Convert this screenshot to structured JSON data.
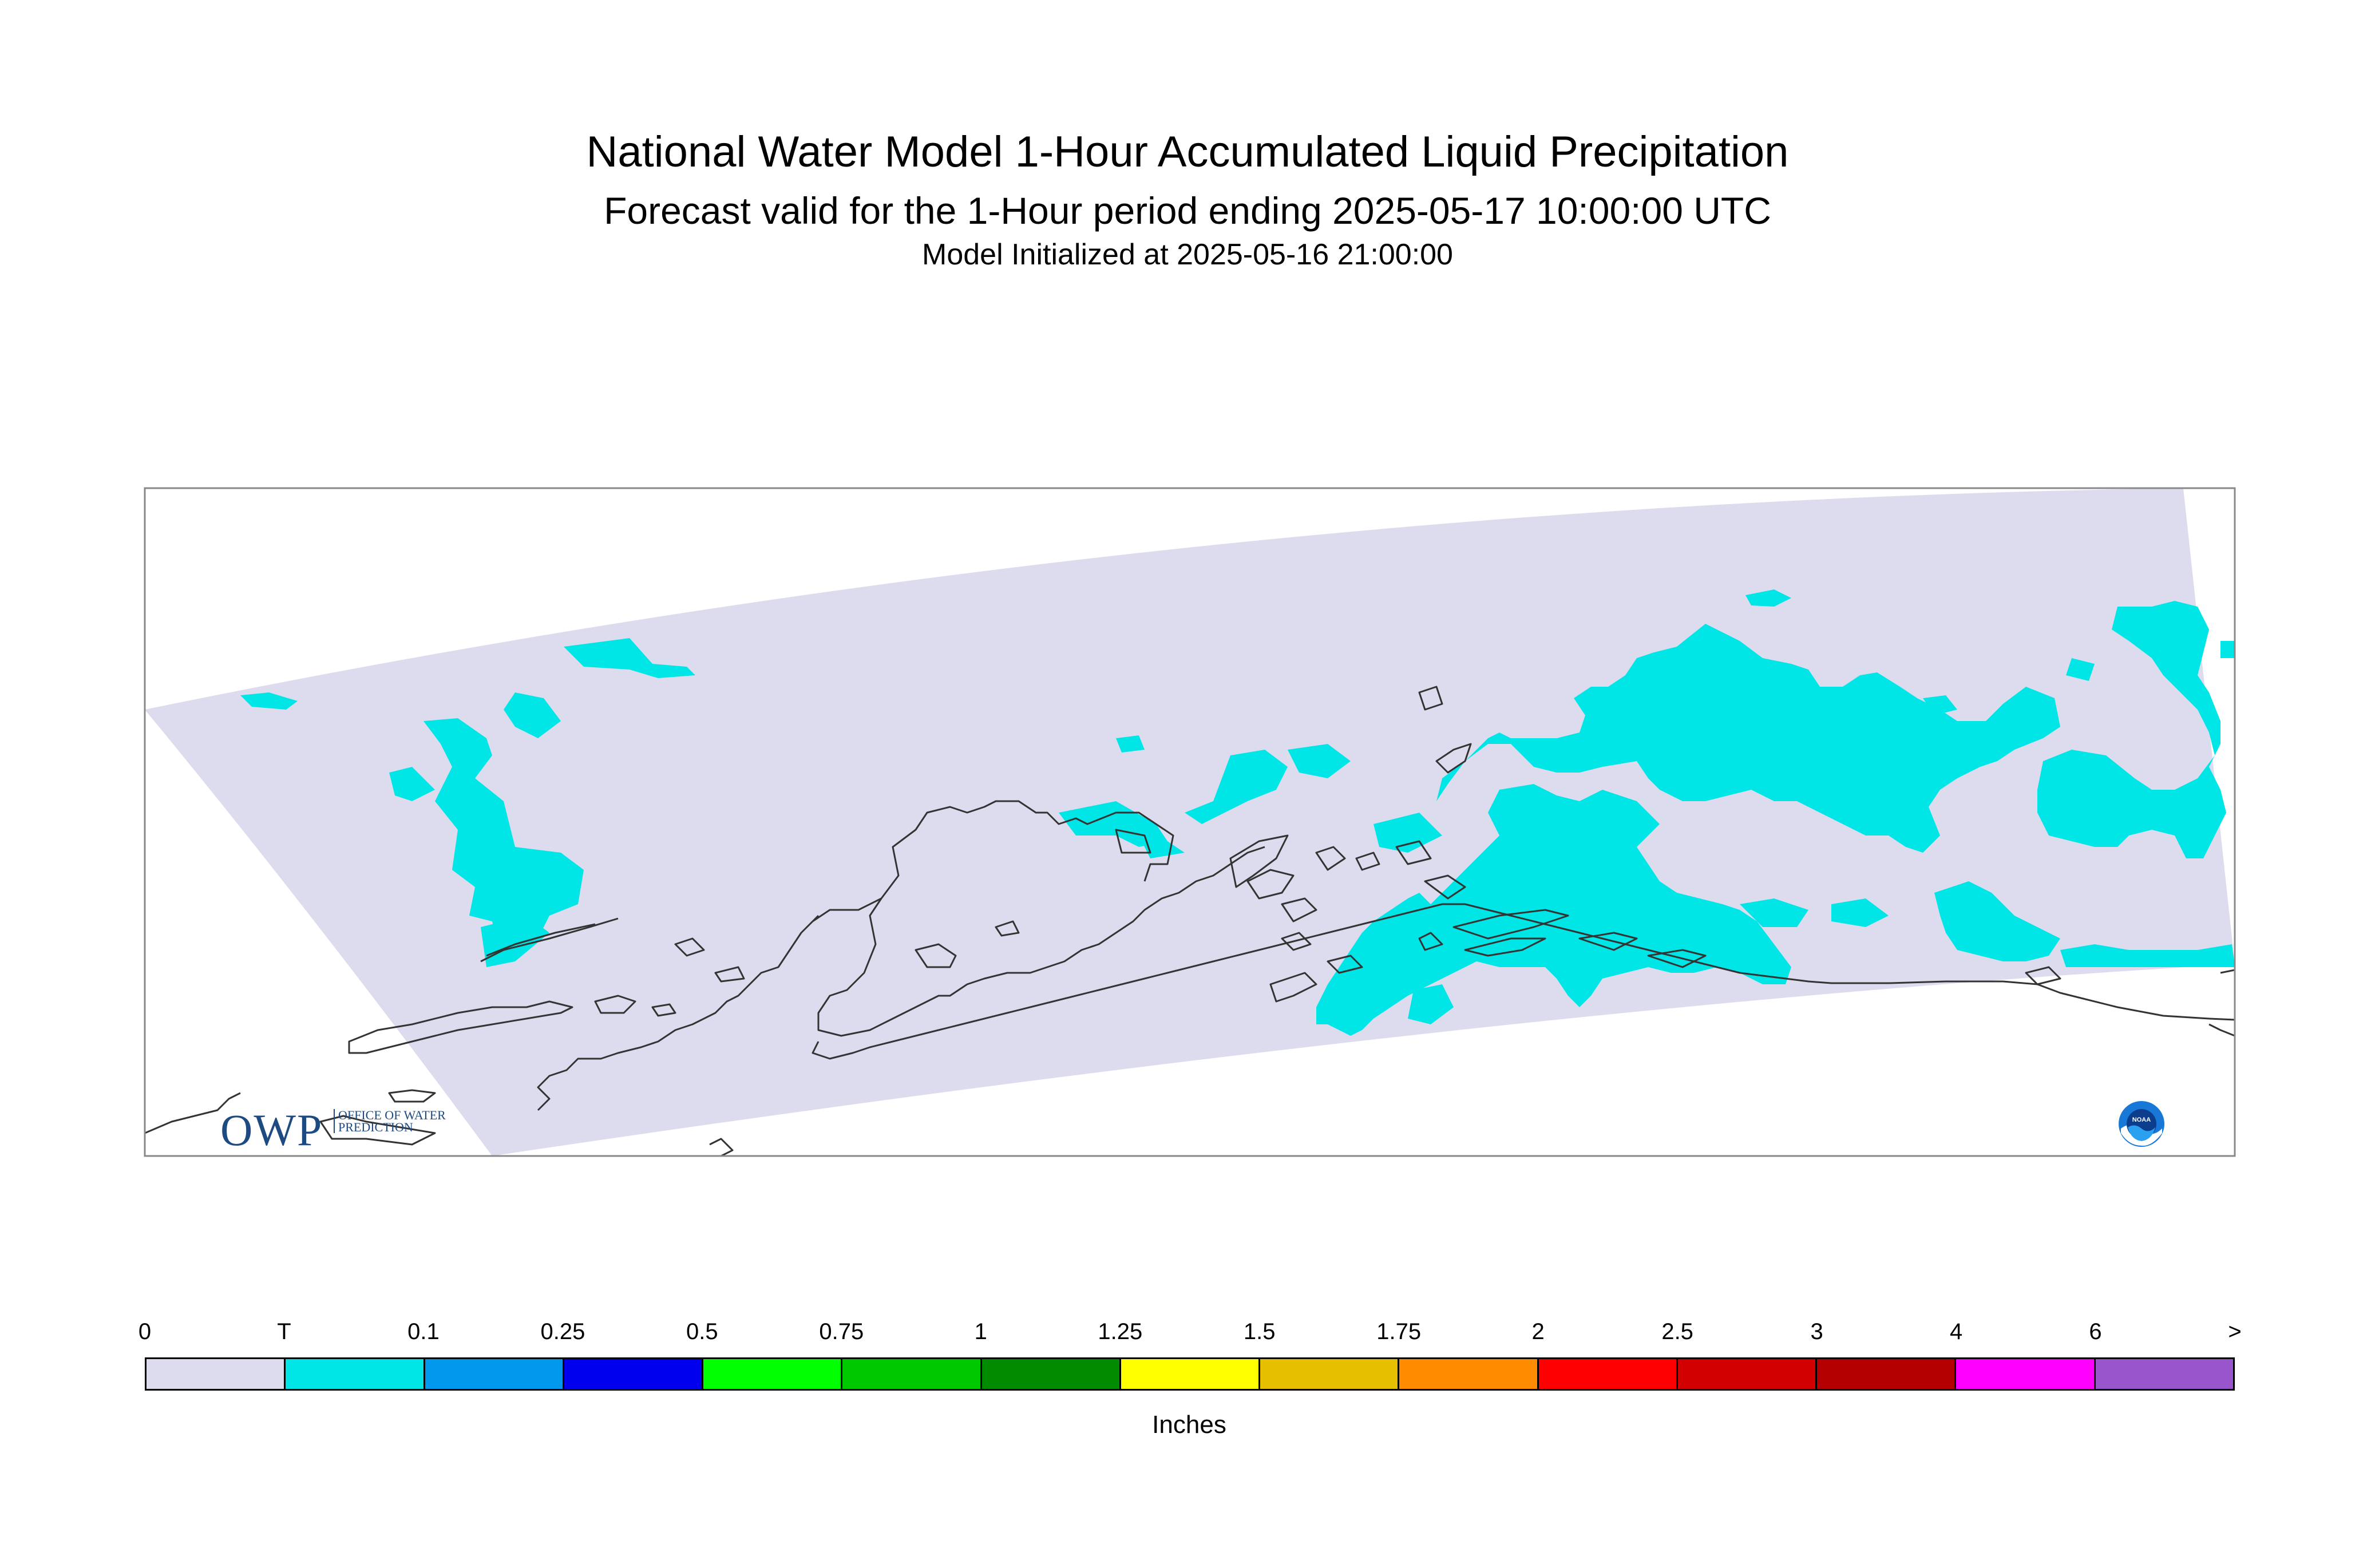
{
  "header": {
    "title": "National Water Model 1-Hour Accumulated Liquid Precipitation",
    "subtitle": "Forecast valid for the 1-Hour period ending 2025-05-17 10:00:00 UTC",
    "init": "Model Initialized at 2025-05-16 21:00:00"
  },
  "legend": {
    "labels": [
      "0",
      "T",
      "0.1",
      "0.25",
      "0.5",
      "0.75",
      "1",
      "1.25",
      "1.5",
      "1.75",
      "2",
      "2.5",
      "3",
      "4",
      "6",
      ">"
    ],
    "colors": [
      "#dcdcee",
      "#00e5e5",
      "#0099ee",
      "#0000ee",
      "#00ff00",
      "#00c800",
      "#008b00",
      "#ffff00",
      "#e6c000",
      "#ff8c00",
      "#ff0000",
      "#d20000",
      "#b40000",
      "#ff00ff",
      "#9955cc"
    ],
    "units": "Inches"
  },
  "logos": {
    "owp_text": "OWP",
    "owp_subtext": "OFFICE OF WATER PREDICTION",
    "noaa_text": "NOAA"
  },
  "colors": {
    "domain_fill": "#dcdcee",
    "trace_precip": "#00e5e5",
    "coastline": "#333333"
  }
}
